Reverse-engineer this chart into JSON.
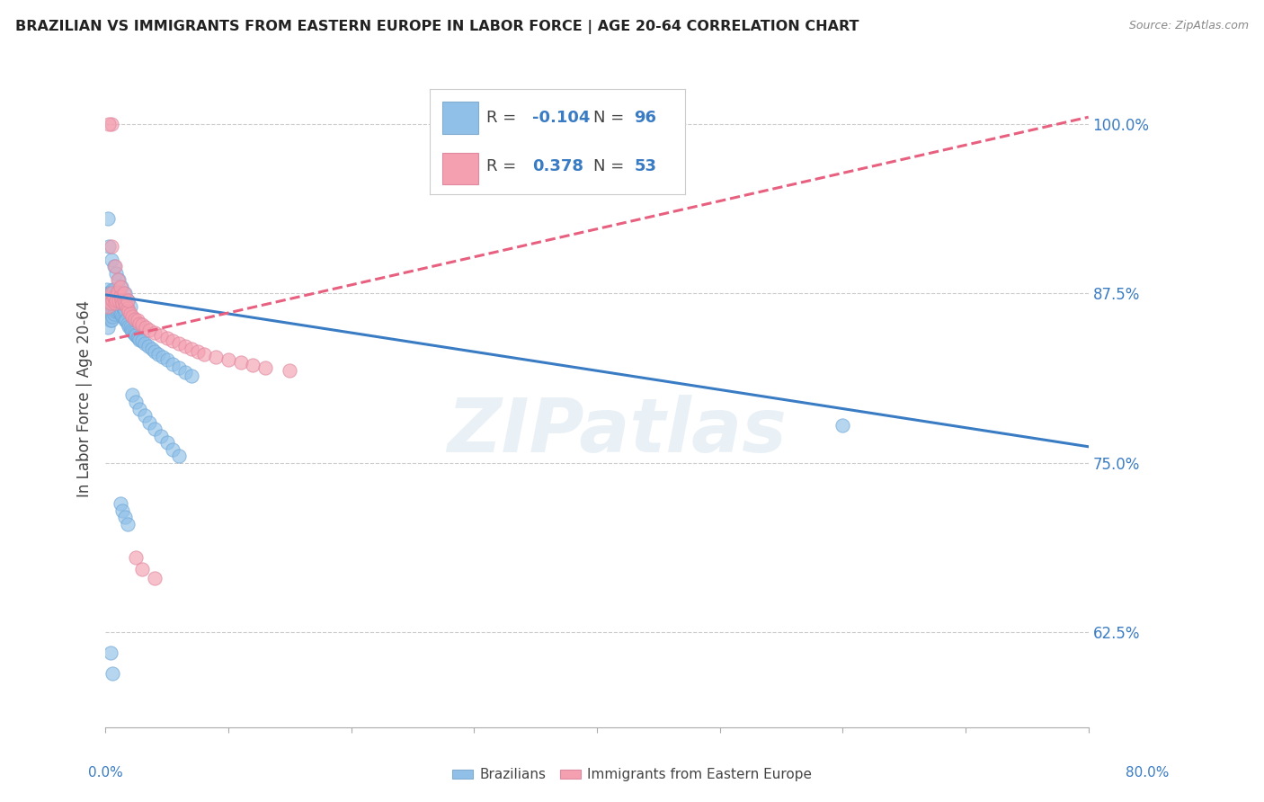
{
  "title": "BRAZILIAN VS IMMIGRANTS FROM EASTERN EUROPE IN LABOR FORCE | AGE 20-64 CORRELATION CHART",
  "source": "Source: ZipAtlas.com",
  "ylabel": "In Labor Force | Age 20-64",
  "ytick_labels": [
    "62.5%",
    "75.0%",
    "87.5%",
    "100.0%"
  ],
  "ytick_values": [
    0.625,
    0.75,
    0.875,
    1.0
  ],
  "xlim": [
    0.0,
    0.8
  ],
  "ylim": [
    0.555,
    1.04
  ],
  "bottom_legend": [
    "Brazilians",
    "Immigrants from Eastern Europe"
  ],
  "blue_color": "#90c0e8",
  "pink_color": "#f4a0b0",
  "blue_line_color": "#3a7cc4",
  "pink_line_color": "#e86080",
  "watermark": "ZIPatlas",
  "blue_scatter_x": [
    0.001,
    0.001,
    0.002,
    0.002,
    0.002,
    0.003,
    0.003,
    0.003,
    0.003,
    0.004,
    0.004,
    0.004,
    0.004,
    0.005,
    0.005,
    0.005,
    0.005,
    0.006,
    0.006,
    0.006,
    0.006,
    0.007,
    0.007,
    0.007,
    0.007,
    0.008,
    0.008,
    0.008,
    0.009,
    0.009,
    0.009,
    0.01,
    0.01,
    0.01,
    0.011,
    0.011,
    0.012,
    0.012,
    0.013,
    0.013,
    0.014,
    0.014,
    0.015,
    0.015,
    0.016,
    0.016,
    0.017,
    0.018,
    0.019,
    0.02,
    0.021,
    0.022,
    0.023,
    0.024,
    0.025,
    0.026,
    0.027,
    0.028,
    0.03,
    0.032,
    0.035,
    0.038,
    0.04,
    0.043,
    0.047,
    0.05,
    0.055,
    0.06,
    0.065,
    0.07,
    0.002,
    0.003,
    0.005,
    0.007,
    0.009,
    0.011,
    0.013,
    0.016,
    0.018,
    0.02,
    0.022,
    0.025,
    0.028,
    0.032,
    0.036,
    0.04,
    0.045,
    0.05,
    0.055,
    0.06,
    0.012,
    0.014,
    0.016,
    0.018,
    0.6,
    0.004,
    0.006
  ],
  "blue_scatter_y": [
    0.87,
    0.878,
    0.85,
    0.868,
    0.875,
    0.858,
    0.863,
    0.87,
    0.875,
    0.855,
    0.861,
    0.868,
    0.875,
    0.855,
    0.862,
    0.87,
    0.876,
    0.858,
    0.864,
    0.87,
    0.878,
    0.86,
    0.867,
    0.872,
    0.878,
    0.862,
    0.868,
    0.873,
    0.863,
    0.869,
    0.875,
    0.862,
    0.869,
    0.876,
    0.863,
    0.87,
    0.86,
    0.868,
    0.86,
    0.867,
    0.858,
    0.865,
    0.857,
    0.864,
    0.855,
    0.862,
    0.855,
    0.853,
    0.851,
    0.85,
    0.848,
    0.847,
    0.846,
    0.845,
    0.844,
    0.843,
    0.842,
    0.841,
    0.84,
    0.838,
    0.836,
    0.834,
    0.832,
    0.83,
    0.828,
    0.826,
    0.823,
    0.82,
    0.817,
    0.814,
    0.93,
    0.91,
    0.9,
    0.895,
    0.89,
    0.885,
    0.88,
    0.875,
    0.87,
    0.865,
    0.8,
    0.795,
    0.79,
    0.785,
    0.78,
    0.775,
    0.77,
    0.765,
    0.76,
    0.755,
    0.72,
    0.715,
    0.71,
    0.705,
    0.778,
    0.61,
    0.595
  ],
  "pink_scatter_x": [
    0.001,
    0.002,
    0.003,
    0.004,
    0.005,
    0.005,
    0.006,
    0.007,
    0.008,
    0.009,
    0.01,
    0.011,
    0.012,
    0.013,
    0.014,
    0.015,
    0.016,
    0.017,
    0.018,
    0.019,
    0.02,
    0.022,
    0.024,
    0.026,
    0.028,
    0.03,
    0.033,
    0.036,
    0.04,
    0.045,
    0.05,
    0.055,
    0.06,
    0.065,
    0.07,
    0.075,
    0.08,
    0.09,
    0.1,
    0.11,
    0.12,
    0.13,
    0.15,
    0.003,
    0.005,
    0.008,
    0.01,
    0.012,
    0.015,
    0.018,
    0.025,
    0.03,
    0.04
  ],
  "pink_scatter_y": [
    0.87,
    0.865,
    0.872,
    0.868,
    1.0,
    0.875,
    0.87,
    0.872,
    0.868,
    0.87,
    0.876,
    0.87,
    0.873,
    0.87,
    0.868,
    0.87,
    0.868,
    0.866,
    0.864,
    0.862,
    0.86,
    0.858,
    0.856,
    0.855,
    0.853,
    0.852,
    0.85,
    0.848,
    0.846,
    0.844,
    0.842,
    0.84,
    0.838,
    0.836,
    0.834,
    0.832,
    0.83,
    0.828,
    0.826,
    0.824,
    0.822,
    0.82,
    0.818,
    1.0,
    0.91,
    0.895,
    0.885,
    0.88,
    0.875,
    0.87,
    0.68,
    0.672,
    0.665
  ],
  "blue_trend_x": [
    0.0,
    0.8
  ],
  "blue_trend_y": [
    0.874,
    0.762
  ],
  "pink_trend_x": [
    0.0,
    0.8
  ],
  "pink_trend_y": [
    0.84,
    1.005
  ]
}
